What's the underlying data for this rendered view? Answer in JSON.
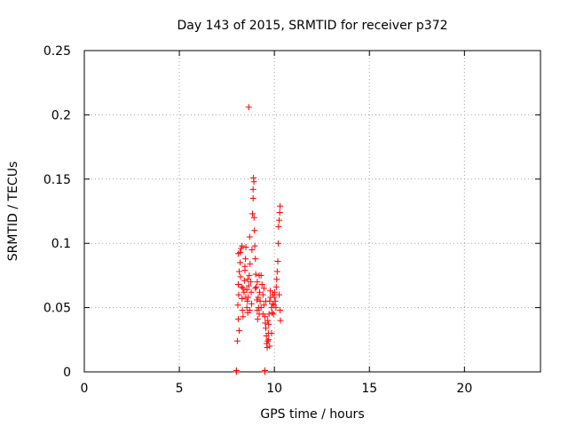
{
  "chart_data": {
    "type": "scatter",
    "title": "Day 143 of 2015, SRMTID for receiver p372",
    "xlabel": "GPS time / hours",
    "ylabel": "SRMTID / TECUs",
    "xlim": [
      0,
      24
    ],
    "ylim": [
      0,
      0.25
    ],
    "x_ticks": [
      0,
      5,
      10,
      15,
      20
    ],
    "x_tick_labels": [
      "0",
      "5",
      "10",
      "15",
      "20"
    ],
    "y_ticks": [
      0,
      0.05,
      0.1,
      0.15,
      0.2,
      0.25
    ],
    "y_tick_labels": [
      "0",
      "0.05",
      "0.1",
      "0.15",
      "0.2",
      "0.25"
    ],
    "grid": true,
    "marker": "plus",
    "marker_color": "#ff0000",
    "series": [
      {
        "name": "SRMTID",
        "points": [
          [
            8.0,
            0.0
          ],
          [
            8.0,
            0.001
          ],
          [
            9.5,
            0.0
          ],
          [
            9.5,
            0.001
          ],
          [
            8.05,
            0.024
          ],
          [
            8.15,
            0.032
          ],
          [
            8.1,
            0.041
          ],
          [
            8.08,
            0.052
          ],
          [
            8.12,
            0.06
          ],
          [
            8.1,
            0.068
          ],
          [
            8.15,
            0.078
          ],
          [
            8.2,
            0.085
          ],
          [
            8.1,
            0.092
          ],
          [
            8.2,
            0.093
          ],
          [
            8.25,
            0.096
          ],
          [
            8.3,
            0.098
          ],
          [
            8.22,
            0.074
          ],
          [
            8.28,
            0.066
          ],
          [
            8.3,
            0.057
          ],
          [
            8.32,
            0.048
          ],
          [
            8.35,
            0.043
          ],
          [
            8.4,
            0.062
          ],
          [
            8.42,
            0.071
          ],
          [
            8.45,
            0.079
          ],
          [
            8.48,
            0.088
          ],
          [
            8.5,
            0.097
          ],
          [
            8.55,
            0.064
          ],
          [
            8.58,
            0.055
          ],
          [
            8.6,
            0.046
          ],
          [
            8.62,
            0.058
          ],
          [
            8.65,
            0.067
          ],
          [
            8.68,
            0.075
          ],
          [
            8.7,
            0.105
          ],
          [
            8.72,
            0.084
          ],
          [
            8.75,
            0.07
          ],
          [
            8.78,
            0.062
          ],
          [
            8.8,
            0.053
          ],
          [
            8.82,
            0.095
          ],
          [
            8.85,
            0.123
          ],
          [
            8.88,
            0.142
          ],
          [
            8.9,
            0.151
          ],
          [
            8.92,
            0.148
          ],
          [
            8.88,
            0.135
          ],
          [
            8.93,
            0.12
          ],
          [
            8.95,
            0.11
          ],
          [
            8.97,
            0.098
          ],
          [
            9.0,
            0.088
          ],
          [
            9.02,
            0.076
          ],
          [
            9.05,
            0.066
          ],
          [
            9.08,
            0.056
          ],
          [
            9.1,
            0.048
          ],
          [
            9.12,
            0.041
          ],
          [
            9.15,
            0.058
          ],
          [
            9.18,
            0.05
          ],
          [
            9.2,
            0.045
          ],
          [
            9.22,
            0.062
          ],
          [
            9.25,
            0.055
          ],
          [
            9.3,
            0.075
          ],
          [
            9.35,
            0.068
          ],
          [
            9.4,
            0.06
          ],
          [
            9.45,
            0.052
          ],
          [
            9.5,
            0.043
          ],
          [
            9.52,
            0.038
          ],
          [
            9.55,
            0.034
          ],
          [
            9.58,
            0.028
          ],
          [
            9.6,
            0.022
          ],
          [
            9.62,
            0.019
          ],
          [
            9.65,
            0.024
          ],
          [
            9.68,
            0.03
          ],
          [
            9.7,
            0.037
          ],
          [
            9.72,
            0.045
          ],
          [
            9.75,
            0.055
          ],
          [
            9.78,
            0.063
          ],
          [
            9.8,
            0.058
          ],
          [
            9.85,
            0.05
          ],
          [
            9.88,
            0.046
          ],
          [
            9.9,
            0.053
          ],
          [
            9.92,
            0.06
          ],
          [
            9.95,
            0.045
          ],
          [
            9.98,
            0.052
          ],
          [
            10.0,
            0.058
          ],
          [
            10.02,
            0.062
          ],
          [
            10.05,
            0.055
          ],
          [
            10.08,
            0.05
          ],
          [
            10.1,
            0.066
          ],
          [
            10.12,
            0.072
          ],
          [
            10.15,
            0.078
          ],
          [
            10.18,
            0.086
          ],
          [
            10.2,
            0.1
          ],
          [
            10.22,
            0.113
          ],
          [
            10.25,
            0.118
          ],
          [
            10.28,
            0.124
          ],
          [
            10.3,
            0.129
          ],
          [
            10.25,
            0.06
          ],
          [
            10.3,
            0.048
          ],
          [
            10.32,
            0.04
          ],
          [
            8.65,
            0.206
          ],
          [
            8.5,
            0.058
          ],
          [
            8.35,
            0.065
          ],
          [
            8.6,
            0.072
          ],
          [
            8.55,
            0.05
          ],
          [
            8.45,
            0.082
          ],
          [
            8.7,
            0.048
          ],
          [
            9.0,
            0.065
          ],
          [
            9.1,
            0.07
          ],
          [
            9.2,
            0.075
          ],
          [
            9.3,
            0.05
          ],
          [
            9.4,
            0.045
          ],
          [
            9.45,
            0.065
          ],
          [
            9.55,
            0.055
          ],
          [
            9.65,
            0.04
          ],
          [
            9.7,
            0.025
          ],
          [
            9.75,
            0.02
          ],
          [
            9.85,
            0.03
          ]
        ]
      }
    ]
  }
}
